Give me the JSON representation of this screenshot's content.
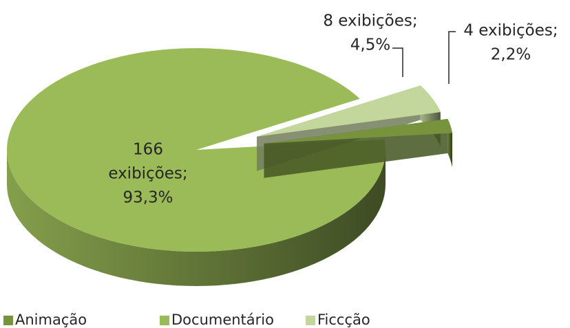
{
  "chart_data": {
    "type": "pie",
    "categories": [
      "Animação",
      "Documentário",
      "Ficcção"
    ],
    "values": [
      4,
      166,
      8
    ],
    "value_labels": [
      [
        "4 exibições;",
        "2,2%"
      ],
      [
        "166",
        "exibições;",
        "93,3%"
      ],
      [
        "8 exibições;",
        "4,5%"
      ]
    ],
    "colors": [
      "#77933c",
      "#9bbb59",
      "#c3d69b"
    ],
    "legend": "bottom"
  }
}
